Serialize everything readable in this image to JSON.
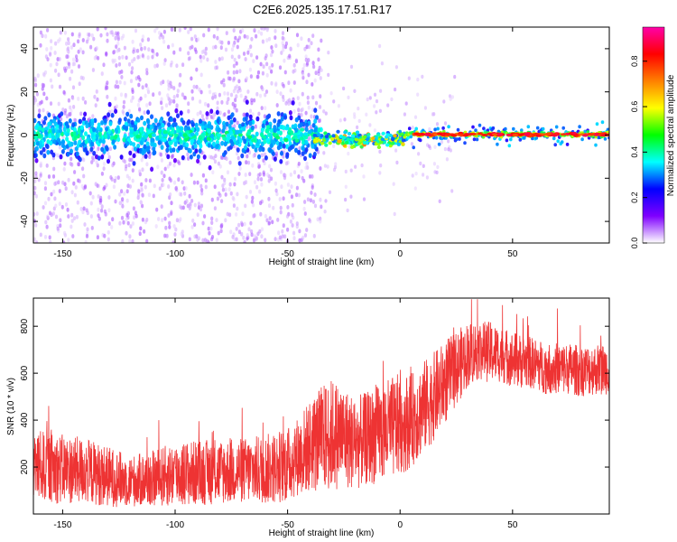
{
  "title": "C2E6.2025.135.17.51.R17",
  "chart_data": [
    {
      "type": "heatmap",
      "title": "C2E6.2025.135.17.51.R17",
      "xlabel": "Height of straight line (km)",
      "ylabel": "Frequency (Hz)",
      "xlim": [
        -163,
        93
      ],
      "ylim": [
        -50,
        50
      ],
      "xticks": [
        -150,
        -100,
        -50,
        0,
        50
      ],
      "yticks": [
        -40,
        -20,
        0,
        20,
        40
      ],
      "grid": false,
      "colorbar": {
        "label": "Normalized spectral amplitude",
        "range": [
          0.0,
          0.95
        ],
        "ticks": [
          0.0,
          0.2,
          0.4,
          0.6,
          0.8
        ],
        "tick_labels": [
          "0.0",
          "0.2",
          "0.4",
          "0.6",
          "0.8"
        ],
        "colors": [
          "#ffffff",
          "#7f00ff",
          "#0000ff",
          "#00ffff",
          "#00ff00",
          "#ffff00",
          "#ff8000",
          "#ff0000",
          "#ff00aa"
        ]
      },
      "features": [
        {
          "x_range": [
            -163,
            -35
          ],
          "frequency_center": 0,
          "description": "noisy band",
          "band_halfwidth_hz": 12,
          "typical_amplitude": 0.1
        },
        {
          "x_range": [
            -35,
            0
          ],
          "frequency_center": -2,
          "band_halfwidth_hz": 3,
          "typical_amplitude": 0.5
        },
        {
          "x_range": [
            0,
            93
          ],
          "frequency_center": 0,
          "band_halfwidth_hz": 2,
          "typical_amplitude": 0.85
        }
      ]
    },
    {
      "type": "line",
      "xlabel": "Height of straight line (km)",
      "ylabel": "SNR (10 * v/v)",
      "xlim": [
        -163,
        93
      ],
      "ylim": [
        0,
        920
      ],
      "xticks": [
        -150,
        -100,
        -50,
        0,
        50
      ],
      "yticks": [
        200,
        400,
        600,
        800
      ],
      "grid": false,
      "color": "#ee3333",
      "series": [
        {
          "x": [
            -163,
            -150,
            -140,
            -130,
            -120,
            -110,
            -100,
            -90,
            -80,
            -70,
            -60,
            -50,
            -45,
            -40,
            -35,
            -30,
            -25,
            -20,
            -15,
            -10,
            -5,
            0,
            5,
            10,
            15,
            20,
            25,
            30,
            35,
            40,
            45,
            50,
            55,
            60,
            65,
            70,
            75,
            80,
            85,
            93
          ],
          "values": [
            210,
            190,
            185,
            160,
            140,
            150,
            170,
            175,
            180,
            185,
            190,
            210,
            250,
            290,
            320,
            340,
            330,
            300,
            320,
            340,
            360,
            380,
            400,
            450,
            500,
            560,
            620,
            680,
            700,
            690,
            680,
            660,
            650,
            640,
            620,
            620,
            620,
            610,
            615,
            620
          ],
          "spread": [
            150,
            150,
            140,
            130,
            110,
            120,
            140,
            140,
            140,
            140,
            150,
            160,
            170,
            200,
            230,
            240,
            220,
            200,
            200,
            210,
            220,
            220,
            200,
            200,
            190,
            180,
            160,
            140,
            130,
            130,
            120,
            120,
            115,
            110,
            110,
            110,
            110,
            110,
            110,
            110
          ]
        }
      ]
    }
  ]
}
